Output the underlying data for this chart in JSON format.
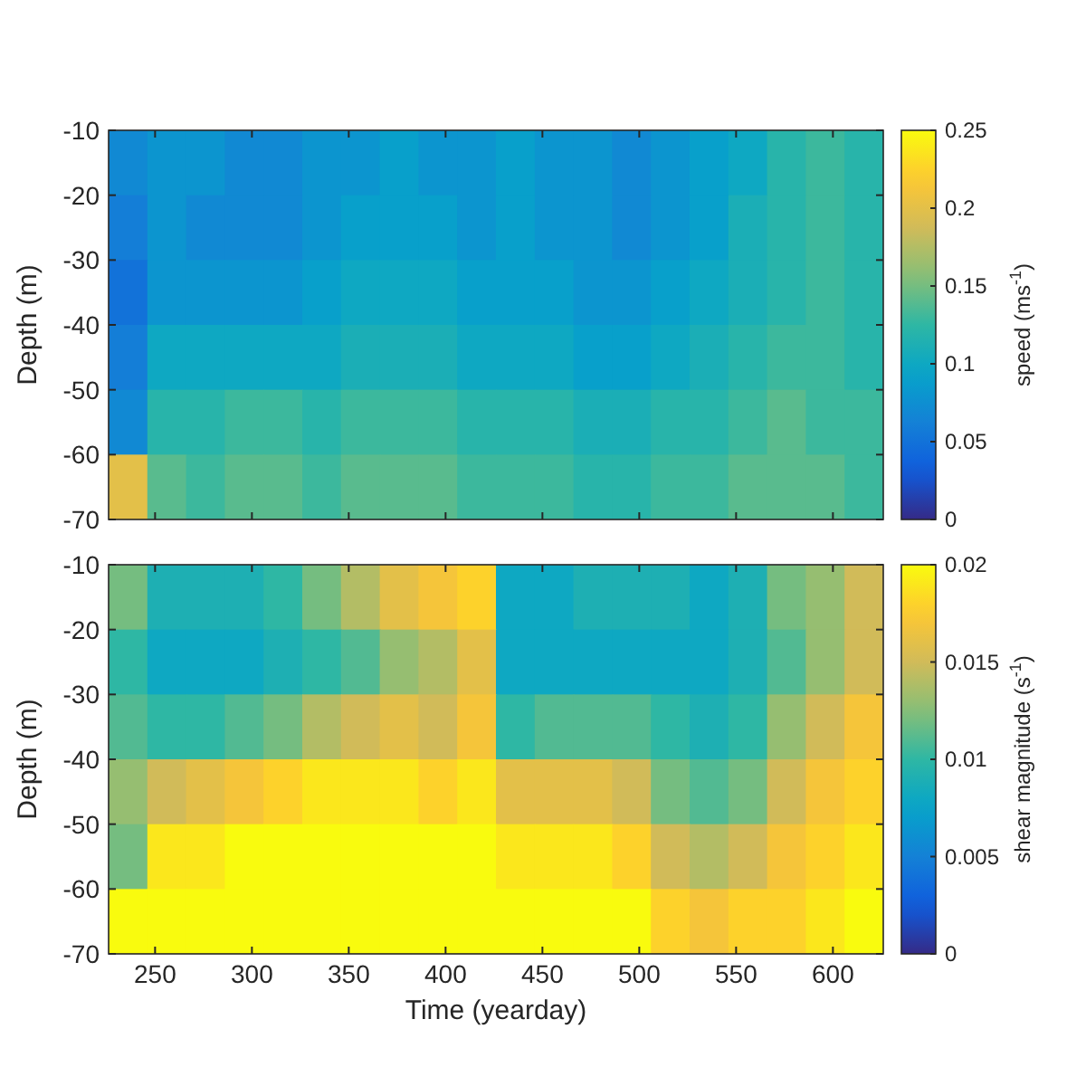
{
  "chart_data": [
    {
      "type": "heatmap",
      "ylabel": "Depth (m)",
      "clabel": "speed (ms$^{-1}$)",
      "tick_labels": "y",
      "x": [
        236,
        256,
        276,
        296,
        316,
        336,
        356,
        376,
        396,
        416,
        436,
        456,
        476,
        496,
        516,
        536,
        556,
        576,
        596,
        616
      ],
      "xlim": [
        226,
        626
      ],
      "xticks": [
        250,
        300,
        350,
        400,
        450,
        500,
        550,
        600
      ],
      "ylim": [
        -70,
        -10
      ],
      "yticks": [
        -70,
        -60,
        -50,
        -40,
        -30,
        -20,
        -10
      ],
      "clim": [
        0,
        0.25
      ],
      "cticks": [
        0,
        0.05,
        0.1,
        0.15,
        0.2,
        0.25
      ],
      "cells": [
        [
          0.07,
          0.08,
          0.08,
          0.07,
          0.07,
          0.08,
          0.08,
          0.09,
          0.08,
          0.08,
          0.09,
          0.08,
          0.08,
          0.07,
          0.08,
          0.09,
          0.1,
          0.12,
          0.13,
          0.12
        ],
        [
          0.06,
          0.08,
          0.07,
          0.07,
          0.07,
          0.08,
          0.09,
          0.09,
          0.09,
          0.08,
          0.09,
          0.08,
          0.08,
          0.07,
          0.08,
          0.09,
          0.11,
          0.12,
          0.13,
          0.12
        ],
        [
          0.05,
          0.08,
          0.08,
          0.08,
          0.08,
          0.09,
          0.1,
          0.1,
          0.1,
          0.09,
          0.09,
          0.09,
          0.08,
          0.08,
          0.09,
          0.1,
          0.11,
          0.12,
          0.13,
          0.12
        ],
        [
          0.06,
          0.1,
          0.1,
          0.1,
          0.1,
          0.1,
          0.11,
          0.11,
          0.11,
          0.1,
          0.1,
          0.1,
          0.09,
          0.09,
          0.1,
          0.11,
          0.12,
          0.13,
          0.13,
          0.12
        ],
        [
          0.07,
          0.12,
          0.12,
          0.13,
          0.13,
          0.12,
          0.13,
          0.13,
          0.13,
          0.12,
          0.12,
          0.12,
          0.11,
          0.11,
          0.12,
          0.12,
          0.13,
          0.14,
          0.13,
          0.13
        ],
        [
          0.2,
          0.14,
          0.13,
          0.14,
          0.14,
          0.13,
          0.14,
          0.14,
          0.14,
          0.13,
          0.13,
          0.13,
          0.12,
          0.12,
          0.13,
          0.13,
          0.14,
          0.14,
          0.14,
          0.13
        ]
      ]
    },
    {
      "type": "heatmap",
      "xlabel": "Time (yearday)",
      "ylabel": "Depth (m)",
      "clabel": "shear magnitude (s$^{-1}$)",
      "x": [
        236,
        256,
        276,
        296,
        316,
        336,
        356,
        376,
        396,
        416,
        436,
        456,
        476,
        496,
        516,
        536,
        556,
        576,
        596,
        616
      ],
      "xlim": [
        226,
        626
      ],
      "xticks": [
        250,
        300,
        350,
        400,
        450,
        500,
        550,
        600
      ],
      "ylim": [
        -70,
        -10
      ],
      "yticks": [
        -70,
        -60,
        -50,
        -40,
        -30,
        -20,
        -10
      ],
      "clim": [
        0,
        0.02
      ],
      "cticks": [
        0,
        0.005,
        0.01,
        0.015,
        0.02
      ],
      "cells": [
        [
          0.012,
          0.009,
          0.009,
          0.009,
          0.01,
          0.012,
          0.014,
          0.016,
          0.017,
          0.018,
          0.008,
          0.008,
          0.009,
          0.009,
          0.009,
          0.008,
          0.009,
          0.012,
          0.013,
          0.015
        ],
        [
          0.01,
          0.008,
          0.008,
          0.008,
          0.009,
          0.01,
          0.011,
          0.013,
          0.014,
          0.016,
          0.008,
          0.008,
          0.008,
          0.008,
          0.008,
          0.008,
          0.009,
          0.011,
          0.013,
          0.015
        ],
        [
          0.011,
          0.01,
          0.01,
          0.011,
          0.012,
          0.014,
          0.015,
          0.016,
          0.015,
          0.017,
          0.01,
          0.011,
          0.011,
          0.011,
          0.01,
          0.009,
          0.01,
          0.013,
          0.015,
          0.017
        ],
        [
          0.013,
          0.015,
          0.016,
          0.017,
          0.018,
          0.019,
          0.019,
          0.019,
          0.018,
          0.019,
          0.016,
          0.016,
          0.016,
          0.015,
          0.012,
          0.011,
          0.012,
          0.015,
          0.017,
          0.018
        ],
        [
          0.012,
          0.019,
          0.019,
          0.02,
          0.02,
          0.02,
          0.02,
          0.02,
          0.02,
          0.02,
          0.019,
          0.019,
          0.019,
          0.018,
          0.015,
          0.014,
          0.015,
          0.017,
          0.018,
          0.019
        ],
        [
          0.02,
          0.02,
          0.02,
          0.02,
          0.02,
          0.02,
          0.02,
          0.02,
          0.02,
          0.02,
          0.02,
          0.02,
          0.02,
          0.02,
          0.018,
          0.017,
          0.018,
          0.018,
          0.019,
          0.02
        ]
      ]
    }
  ]
}
